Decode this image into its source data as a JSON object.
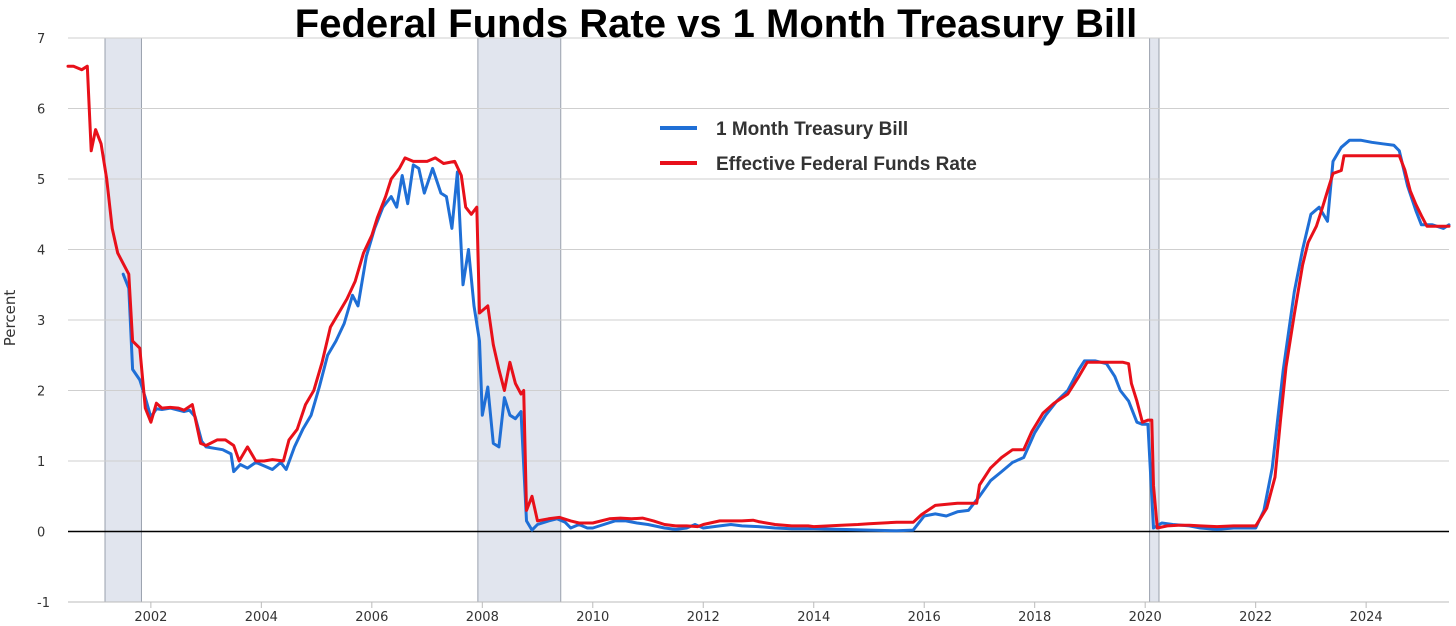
{
  "chart_data": {
    "type": "line",
    "title": "Federal Funds Rate vs 1 Month Treasury Bill",
    "xlabel": "",
    "ylabel": "Percent",
    "xlim": [
      2000.5,
      2025.5
    ],
    "ylim": [
      -1,
      7
    ],
    "grid": true,
    "legend_position": "top-center",
    "x_ticks": [
      2002,
      2004,
      2006,
      2008,
      2010,
      2012,
      2014,
      2016,
      2018,
      2020,
      2022,
      2024
    ],
    "y_ticks": [
      -1,
      0,
      1,
      2,
      3,
      4,
      5,
      6,
      7
    ],
    "recessions": [
      [
        2001.17,
        2001.83
      ],
      [
        2007.92,
        2009.42
      ],
      [
        2020.08,
        2020.25
      ]
    ],
    "series": [
      {
        "name": "1 Month Treasury Bill",
        "color": "#1f6fd6",
        "points": [
          [
            2001.5,
            3.65
          ],
          [
            2001.6,
            3.45
          ],
          [
            2001.67,
            2.3
          ],
          [
            2001.8,
            2.15
          ],
          [
            2001.9,
            1.9
          ],
          [
            2002.0,
            1.62
          ],
          [
            2002.1,
            1.74
          ],
          [
            2002.2,
            1.73
          ],
          [
            2002.35,
            1.75
          ],
          [
            2002.5,
            1.72
          ],
          [
            2002.6,
            1.7
          ],
          [
            2002.7,
            1.72
          ],
          [
            2002.8,
            1.63
          ],
          [
            2002.92,
            1.28
          ],
          [
            2003.0,
            1.2
          ],
          [
            2003.15,
            1.18
          ],
          [
            2003.3,
            1.16
          ],
          [
            2003.45,
            1.1
          ],
          [
            2003.5,
            0.85
          ],
          [
            2003.62,
            0.95
          ],
          [
            2003.75,
            0.9
          ],
          [
            2003.9,
            0.98
          ],
          [
            2004.05,
            0.93
          ],
          [
            2004.2,
            0.88
          ],
          [
            2004.35,
            0.98
          ],
          [
            2004.45,
            0.88
          ],
          [
            2004.6,
            1.2
          ],
          [
            2004.75,
            1.45
          ],
          [
            2004.9,
            1.65
          ],
          [
            2005.05,
            2.05
          ],
          [
            2005.2,
            2.5
          ],
          [
            2005.35,
            2.7
          ],
          [
            2005.5,
            2.95
          ],
          [
            2005.65,
            3.35
          ],
          [
            2005.75,
            3.2
          ],
          [
            2005.9,
            3.9
          ],
          [
            2006.05,
            4.3
          ],
          [
            2006.2,
            4.6
          ],
          [
            2006.35,
            4.75
          ],
          [
            2006.45,
            4.6
          ],
          [
            2006.55,
            5.05
          ],
          [
            2006.65,
            4.65
          ],
          [
            2006.75,
            5.2
          ],
          [
            2006.85,
            5.15
          ],
          [
            2006.95,
            4.8
          ],
          [
            2007.1,
            5.15
          ],
          [
            2007.25,
            4.8
          ],
          [
            2007.35,
            4.75
          ],
          [
            2007.45,
            4.3
          ],
          [
            2007.55,
            5.1
          ],
          [
            2007.65,
            3.5
          ],
          [
            2007.75,
            4.0
          ],
          [
            2007.85,
            3.2
          ],
          [
            2007.95,
            2.7
          ],
          [
            2008.0,
            1.65
          ],
          [
            2008.1,
            2.05
          ],
          [
            2008.2,
            1.25
          ],
          [
            2008.3,
            1.2
          ],
          [
            2008.4,
            1.9
          ],
          [
            2008.5,
            1.65
          ],
          [
            2008.6,
            1.6
          ],
          [
            2008.7,
            1.7
          ],
          [
            2008.8,
            0.15
          ],
          [
            2008.9,
            0.02
          ],
          [
            2009.0,
            0.1
          ],
          [
            2009.2,
            0.15
          ],
          [
            2009.35,
            0.18
          ],
          [
            2009.5,
            0.13
          ],
          [
            2009.6,
            0.05
          ],
          [
            2009.75,
            0.1
          ],
          [
            2009.9,
            0.05
          ],
          [
            2010.0,
            0.05
          ],
          [
            2010.2,
            0.1
          ],
          [
            2010.4,
            0.15
          ],
          [
            2010.6,
            0.15
          ],
          [
            2010.8,
            0.12
          ],
          [
            2011.0,
            0.1
          ],
          [
            2011.3,
            0.05
          ],
          [
            2011.5,
            0.03
          ],
          [
            2011.7,
            0.05
          ],
          [
            2011.85,
            0.1
          ],
          [
            2012.0,
            0.05
          ],
          [
            2012.3,
            0.08
          ],
          [
            2012.5,
            0.1
          ],
          [
            2012.7,
            0.08
          ],
          [
            2013.0,
            0.07
          ],
          [
            2013.3,
            0.05
          ],
          [
            2013.6,
            0.04
          ],
          [
            2014.0,
            0.04
          ],
          [
            2014.5,
            0.03
          ],
          [
            2015.0,
            0.02
          ],
          [
            2015.5,
            0.01
          ],
          [
            2015.8,
            0.02
          ],
          [
            2016.0,
            0.22
          ],
          [
            2016.2,
            0.25
          ],
          [
            2016.4,
            0.22
          ],
          [
            2016.6,
            0.28
          ],
          [
            2016.8,
            0.3
          ],
          [
            2017.0,
            0.5
          ],
          [
            2017.2,
            0.72
          ],
          [
            2017.4,
            0.85
          ],
          [
            2017.6,
            0.98
          ],
          [
            2017.8,
            1.05
          ],
          [
            2018.0,
            1.4
          ],
          [
            2018.2,
            1.65
          ],
          [
            2018.4,
            1.85
          ],
          [
            2018.6,
            2.0
          ],
          [
            2018.8,
            2.3
          ],
          [
            2018.9,
            2.42
          ],
          [
            2019.1,
            2.42
          ],
          [
            2019.3,
            2.38
          ],
          [
            2019.45,
            2.2
          ],
          [
            2019.55,
            2.0
          ],
          [
            2019.7,
            1.85
          ],
          [
            2019.85,
            1.55
          ],
          [
            2019.95,
            1.52
          ],
          [
            2020.05,
            1.52
          ],
          [
            2020.15,
            0.05
          ],
          [
            2020.3,
            0.12
          ],
          [
            2020.5,
            0.1
          ],
          [
            2020.8,
            0.08
          ],
          [
            2021.0,
            0.05
          ],
          [
            2021.3,
            0.03
          ],
          [
            2021.6,
            0.05
          ],
          [
            2021.9,
            0.05
          ],
          [
            2022.0,
            0.05
          ],
          [
            2022.15,
            0.3
          ],
          [
            2022.3,
            0.9
          ],
          [
            2022.5,
            2.3
          ],
          [
            2022.7,
            3.4
          ],
          [
            2022.85,
            4.0
          ],
          [
            2023.0,
            4.5
          ],
          [
            2023.15,
            4.6
          ],
          [
            2023.3,
            4.4
          ],
          [
            2023.4,
            5.25
          ],
          [
            2023.55,
            5.45
          ],
          [
            2023.7,
            5.55
          ],
          [
            2023.9,
            5.55
          ],
          [
            2024.1,
            5.52
          ],
          [
            2024.3,
            5.5
          ],
          [
            2024.5,
            5.48
          ],
          [
            2024.6,
            5.4
          ],
          [
            2024.75,
            4.9
          ],
          [
            2024.9,
            4.55
          ],
          [
            2025.0,
            4.35
          ],
          [
            2025.2,
            4.35
          ],
          [
            2025.4,
            4.3
          ],
          [
            2025.5,
            4.35
          ]
        ]
      },
      {
        "name": "Effective Federal Funds Rate",
        "color": "#e8101a",
        "points": [
          [
            2000.5,
            6.6
          ],
          [
            2000.6,
            6.6
          ],
          [
            2000.75,
            6.55
          ],
          [
            2000.85,
            6.6
          ],
          [
            2000.92,
            5.4
          ],
          [
            2001.0,
            5.7
          ],
          [
            2001.1,
            5.5
          ],
          [
            2001.2,
            5.0
          ],
          [
            2001.3,
            4.3
          ],
          [
            2001.4,
            3.95
          ],
          [
            2001.5,
            3.8
          ],
          [
            2001.6,
            3.65
          ],
          [
            2001.67,
            2.7
          ],
          [
            2001.8,
            2.6
          ],
          [
            2001.9,
            1.75
          ],
          [
            2002.0,
            1.55
          ],
          [
            2002.1,
            1.82
          ],
          [
            2002.2,
            1.75
          ],
          [
            2002.35,
            1.76
          ],
          [
            2002.5,
            1.75
          ],
          [
            2002.6,
            1.72
          ],
          [
            2002.75,
            1.8
          ],
          [
            2002.9,
            1.25
          ],
          [
            2003.0,
            1.22
          ],
          [
            2003.2,
            1.3
          ],
          [
            2003.35,
            1.3
          ],
          [
            2003.5,
            1.22
          ],
          [
            2003.6,
            1.0
          ],
          [
            2003.75,
            1.2
          ],
          [
            2003.9,
            1.0
          ],
          [
            2004.05,
            1.0
          ],
          [
            2004.2,
            1.02
          ],
          [
            2004.4,
            1.0
          ],
          [
            2004.5,
            1.3
          ],
          [
            2004.65,
            1.45
          ],
          [
            2004.8,
            1.8
          ],
          [
            2004.95,
            2.0
          ],
          [
            2005.1,
            2.4
          ],
          [
            2005.25,
            2.9
          ],
          [
            2005.4,
            3.1
          ],
          [
            2005.55,
            3.3
          ],
          [
            2005.7,
            3.55
          ],
          [
            2005.85,
            3.95
          ],
          [
            2006.0,
            4.2
          ],
          [
            2006.1,
            4.45
          ],
          [
            2006.25,
            4.75
          ],
          [
            2006.35,
            5.0
          ],
          [
            2006.5,
            5.15
          ],
          [
            2006.6,
            5.3
          ],
          [
            2006.75,
            5.25
          ],
          [
            2006.9,
            5.25
          ],
          [
            2007.0,
            5.25
          ],
          [
            2007.15,
            5.3
          ],
          [
            2007.3,
            5.22
          ],
          [
            2007.5,
            5.25
          ],
          [
            2007.62,
            5.05
          ],
          [
            2007.7,
            4.6
          ],
          [
            2007.8,
            4.5
          ],
          [
            2007.9,
            4.6
          ],
          [
            2007.95,
            3.1
          ],
          [
            2008.1,
            3.2
          ],
          [
            2008.2,
            2.65
          ],
          [
            2008.3,
            2.3
          ],
          [
            2008.4,
            2.0
          ],
          [
            2008.5,
            2.4
          ],
          [
            2008.6,
            2.1
          ],
          [
            2008.7,
            1.95
          ],
          [
            2008.75,
            2.0
          ],
          [
            2008.8,
            0.3
          ],
          [
            2008.9,
            0.5
          ],
          [
            2009.0,
            0.15
          ],
          [
            2009.2,
            0.18
          ],
          [
            2009.4,
            0.2
          ],
          [
            2009.6,
            0.15
          ],
          [
            2009.75,
            0.12
          ],
          [
            2010.0,
            0.12
          ],
          [
            2010.3,
            0.18
          ],
          [
            2010.5,
            0.19
          ],
          [
            2010.7,
            0.18
          ],
          [
            2010.9,
            0.19
          ],
          [
            2011.1,
            0.15
          ],
          [
            2011.3,
            0.1
          ],
          [
            2011.5,
            0.08
          ],
          [
            2011.7,
            0.08
          ],
          [
            2011.9,
            0.07
          ],
          [
            2012.0,
            0.1
          ],
          [
            2012.3,
            0.15
          ],
          [
            2012.5,
            0.15
          ],
          [
            2012.7,
            0.15
          ],
          [
            2012.9,
            0.16
          ],
          [
            2013.0,
            0.14
          ],
          [
            2013.3,
            0.1
          ],
          [
            2013.6,
            0.08
          ],
          [
            2013.9,
            0.08
          ],
          [
            2014.0,
            0.07
          ],
          [
            2014.5,
            0.09
          ],
          [
            2014.8,
            0.1
          ],
          [
            2015.0,
            0.11
          ],
          [
            2015.5,
            0.13
          ],
          [
            2015.8,
            0.13
          ],
          [
            2015.95,
            0.24
          ],
          [
            2016.2,
            0.37
          ],
          [
            2016.6,
            0.4
          ],
          [
            2016.95,
            0.4
          ],
          [
            2017.0,
            0.66
          ],
          [
            2017.2,
            0.9
          ],
          [
            2017.4,
            1.05
          ],
          [
            2017.6,
            1.16
          ],
          [
            2017.8,
            1.16
          ],
          [
            2017.95,
            1.42
          ],
          [
            2018.15,
            1.68
          ],
          [
            2018.35,
            1.82
          ],
          [
            2018.6,
            1.95
          ],
          [
            2018.8,
            2.2
          ],
          [
            2018.95,
            2.4
          ],
          [
            2019.2,
            2.4
          ],
          [
            2019.4,
            2.4
          ],
          [
            2019.6,
            2.4
          ],
          [
            2019.7,
            2.38
          ],
          [
            2019.75,
            2.1
          ],
          [
            2019.85,
            1.85
          ],
          [
            2019.95,
            1.55
          ],
          [
            2020.05,
            1.58
          ],
          [
            2020.12,
            1.58
          ],
          [
            2020.15,
            0.65
          ],
          [
            2020.22,
            0.05
          ],
          [
            2020.4,
            0.08
          ],
          [
            2020.6,
            0.09
          ],
          [
            2020.8,
            0.09
          ],
          [
            2021.0,
            0.08
          ],
          [
            2021.3,
            0.07
          ],
          [
            2021.6,
            0.08
          ],
          [
            2021.9,
            0.08
          ],
          [
            2022.0,
            0.08
          ],
          [
            2022.2,
            0.33
          ],
          [
            2022.35,
            0.77
          ],
          [
            2022.45,
            1.58
          ],
          [
            2022.55,
            2.33
          ],
          [
            2022.7,
            3.08
          ],
          [
            2022.85,
            3.78
          ],
          [
            2022.95,
            4.1
          ],
          [
            2023.1,
            4.33
          ],
          [
            2023.2,
            4.57
          ],
          [
            2023.3,
            4.83
          ],
          [
            2023.4,
            5.08
          ],
          [
            2023.55,
            5.12
          ],
          [
            2023.6,
            5.33
          ],
          [
            2023.75,
            5.33
          ],
          [
            2024.0,
            5.33
          ],
          [
            2024.3,
            5.33
          ],
          [
            2024.6,
            5.33
          ],
          [
            2024.7,
            5.13
          ],
          [
            2024.8,
            4.83
          ],
          [
            2024.9,
            4.64
          ],
          [
            2025.0,
            4.48
          ],
          [
            2025.1,
            4.33
          ],
          [
            2025.3,
            4.33
          ],
          [
            2025.5,
            4.33
          ]
        ]
      }
    ]
  }
}
